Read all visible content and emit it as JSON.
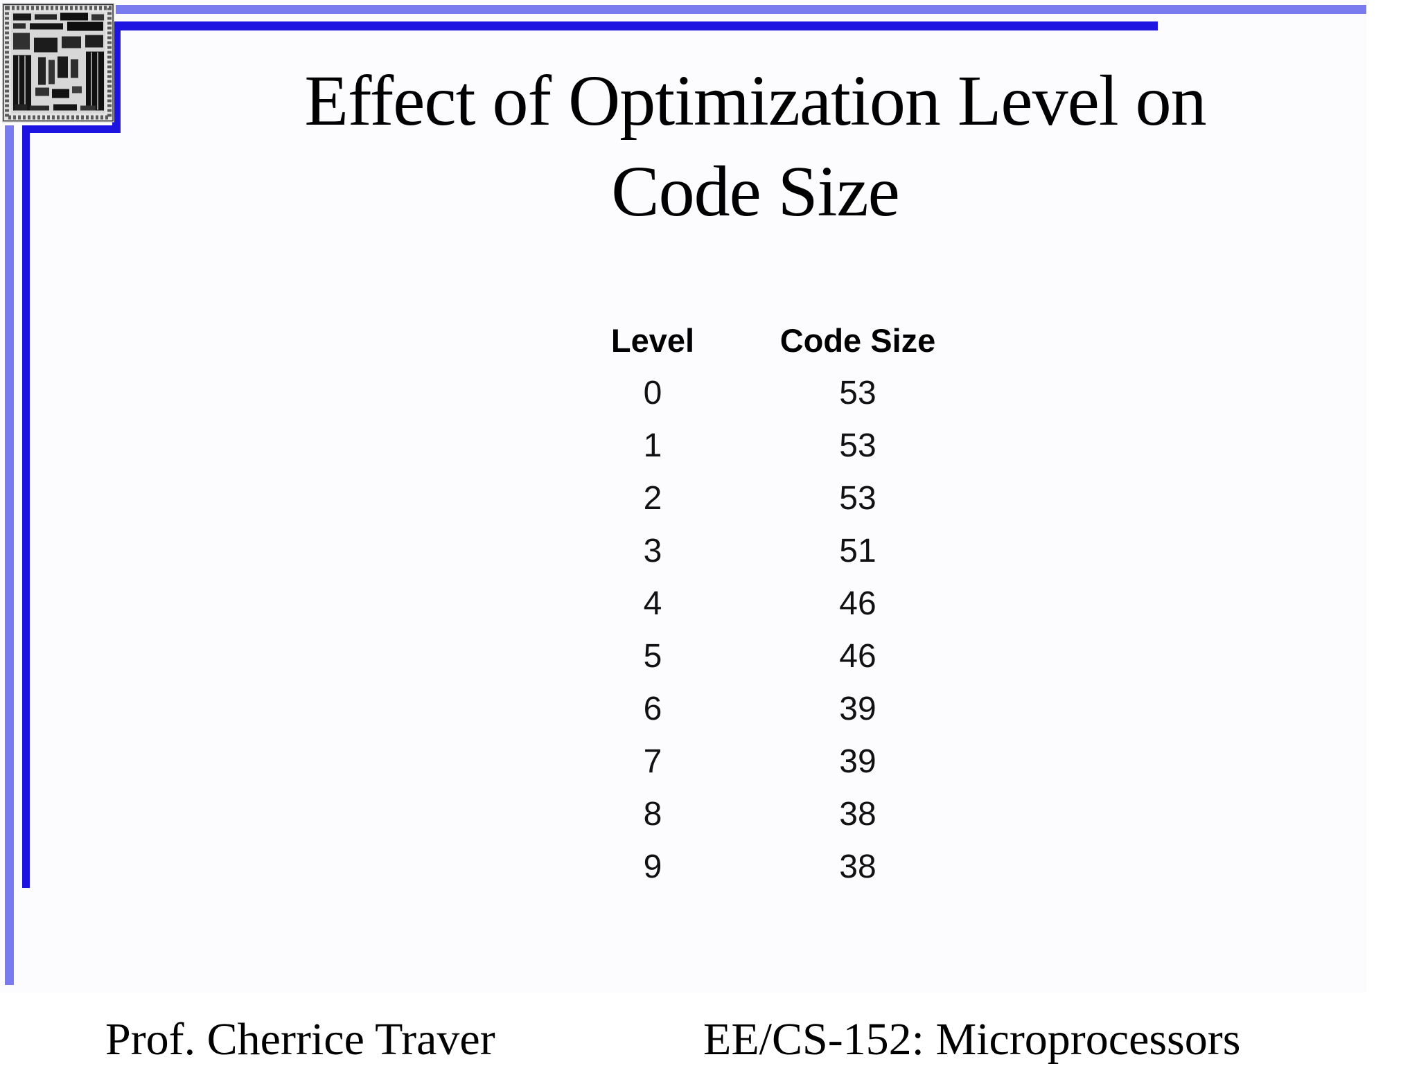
{
  "slide": {
    "title": {
      "line1": "Effect of Optimization Level on",
      "line2": "Code Size"
    },
    "footer": {
      "left": "Prof. Cherrice Traver",
      "right": "EE/CS-152: Microprocessors"
    }
  },
  "chart_data": {
    "type": "table",
    "title": "Effect of Optimization Level on Code Size",
    "columns": [
      "Level",
      "Code Size"
    ],
    "rows": [
      [
        "0",
        "53"
      ],
      [
        "1",
        "53"
      ],
      [
        "2",
        "53"
      ],
      [
        "3",
        "51"
      ],
      [
        "4",
        "46"
      ],
      [
        "5",
        "46"
      ],
      [
        "6",
        "39"
      ],
      [
        "7",
        "39"
      ],
      [
        "8",
        "38"
      ],
      [
        "9",
        "38"
      ]
    ]
  },
  "decorations": {
    "chip_image": "microprocessor-die-photo",
    "colors": {
      "dark_blue": "#1d14e2",
      "light_blue": "#7a7bee",
      "text_black": "#000000"
    }
  }
}
